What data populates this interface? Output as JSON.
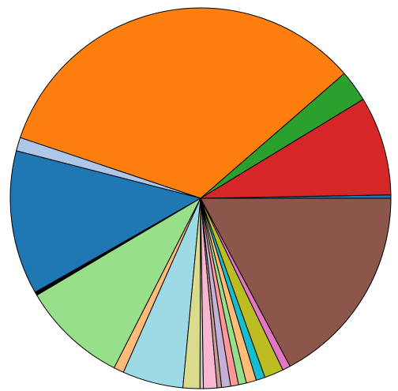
{
  "chart_data": {
    "type": "pie",
    "title": "",
    "legend": "none",
    "start_angle_deg": 0,
    "direction": "counterclockwise",
    "slices": [
      {
        "value": 0.3,
        "color": "#1f77b4"
      },
      {
        "value": 8.8,
        "color": "#d62728"
      },
      {
        "value": 2.8,
        "color": "#2ca02c"
      },
      {
        "value": 35.0,
        "color": "#ff7f0e"
      },
      {
        "value": 1.2,
        "color": "#aec7e8"
      },
      {
        "value": 12.8,
        "color": "#1f77b4"
      },
      {
        "value": 0.3,
        "color": "#000000"
      },
      {
        "value": 9.4,
        "color": "#98df8a"
      },
      {
        "value": 0.9,
        "color": "#ffbb78"
      },
      {
        "value": 5.4,
        "color": "#9edae5"
      },
      {
        "value": 1.5,
        "color": "#dbdb8d"
      },
      {
        "value": 0.3,
        "color": "#c7c7c7"
      },
      {
        "value": 1.2,
        "color": "#f7b6d2"
      },
      {
        "value": 0.4,
        "color": "#c49c94"
      },
      {
        "value": 0.8,
        "color": "#c5b0d5"
      },
      {
        "value": 0.7,
        "color": "#ff9896"
      },
      {
        "value": 0.7,
        "color": "#98df8a"
      },
      {
        "value": 0.9,
        "color": "#ffbb78"
      },
      {
        "value": 0.8,
        "color": "#17becf"
      },
      {
        "value": 1.7,
        "color": "#bcbd22"
      },
      {
        "value": 0.7,
        "color": "#e377c2"
      },
      {
        "value": 18.0,
        "color": "#8c564b"
      }
    ]
  }
}
